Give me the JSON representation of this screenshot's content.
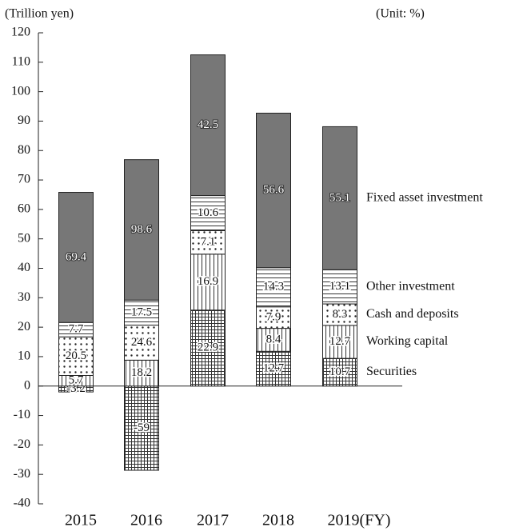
{
  "chart_data": {
    "type": "stacked_bar",
    "y_label": "(Trillion yen)",
    "share_unit_label": "(Unit: %)",
    "categories": [
      "2015",
      "2016",
      "2017",
      "2018",
      "2019(FY)"
    ],
    "ylim": [
      -40,
      120
    ],
    "yticks": [
      -40,
      -30,
      -20,
      -10,
      0,
      10,
      20,
      30,
      40,
      50,
      60,
      70,
      80,
      90,
      100,
      110,
      120
    ],
    "series": [
      {
        "name": "Securities",
        "pattern": "crosshatch",
        "color": "#333333",
        "values": [
          -2.0,
          -28.6,
          25.8,
          11.8,
          9.4
        ],
        "shares": [
          -3.2,
          -59.0,
          22.9,
          12.7,
          10.7
        ]
      },
      {
        "name": "Working capital",
        "pattern": "vertical",
        "color": "#333333",
        "values": [
          3.6,
          8.8,
          19.0,
          7.8,
          11.2
        ],
        "shares": [
          5.7,
          18.2,
          16.9,
          8.4,
          12.7
        ]
      },
      {
        "name": "Cash and deposits",
        "pattern": "dots",
        "color": "#333333",
        "values": [
          13.1,
          11.9,
          8.0,
          7.3,
          7.3
        ],
        "shares": [
          20.5,
          24.6,
          7.1,
          7.9,
          8.3
        ]
      },
      {
        "name": "Other investment",
        "pattern": "horizontal",
        "color": "#333333",
        "values": [
          4.9,
          8.5,
          11.9,
          13.3,
          11.6
        ],
        "shares": [
          7.7,
          17.5,
          10.6,
          14.3,
          13.1
        ]
      },
      {
        "name": "Fixed asset investment",
        "pattern": "solid",
        "color": "#777777",
        "values": [
          44.2,
          47.7,
          47.8,
          52.5,
          48.6
        ],
        "shares": [
          69.4,
          98.6,
          42.5,
          56.6,
          55.1
        ]
      }
    ]
  }
}
